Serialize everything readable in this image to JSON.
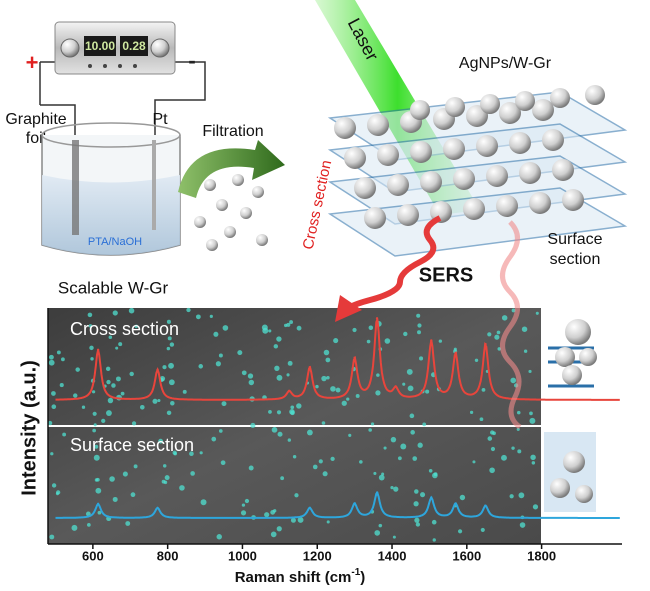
{
  "labels": {
    "plus": "+",
    "minus": "-",
    "display_voltage": "10.00",
    "display_current": "0.28",
    "graphite_line1": "Graphite",
    "graphite_line2": "foil",
    "pt": "Pt",
    "electrolyte": "PTA/NaOH",
    "scalable": "Scalable W-Gr",
    "filtration": "Filtration",
    "laser": "Laser",
    "product": "AgNPs/W-Gr",
    "cross_section": "Cross section",
    "sers": "SERS",
    "surface_line1": "Surface",
    "surface_line2": "section"
  },
  "plot": {
    "xlabel_main": "Raman shift (cm",
    "xlabel_sup": "-1",
    "xlabel_end": ")",
    "ylabel": "Intensity (a.u.)",
    "xlim": [
      480,
      2015
    ],
    "xticks": [
      600,
      800,
      1000,
      1200,
      1400,
      1600,
      1800
    ],
    "spectra": [
      {
        "name": "Cross section",
        "color": "#e8453c",
        "peaks": {
          "x": [
            614,
            773,
            1125,
            1180,
            1300,
            1360,
            1410,
            1505,
            1570,
            1650
          ],
          "heights": [
            50,
            30,
            8,
            32,
            40,
            80,
            10,
            58,
            45,
            55
          ]
        }
      },
      {
        "name": "Surface section",
        "color": "#2ea6dc",
        "peaks": {
          "x": [
            614,
            773,
            1180,
            1300,
            1360,
            1505,
            1570,
            1650
          ],
          "heights": [
            14,
            10,
            10,
            14,
            25,
            20,
            14,
            12
          ]
        }
      }
    ]
  }
}
